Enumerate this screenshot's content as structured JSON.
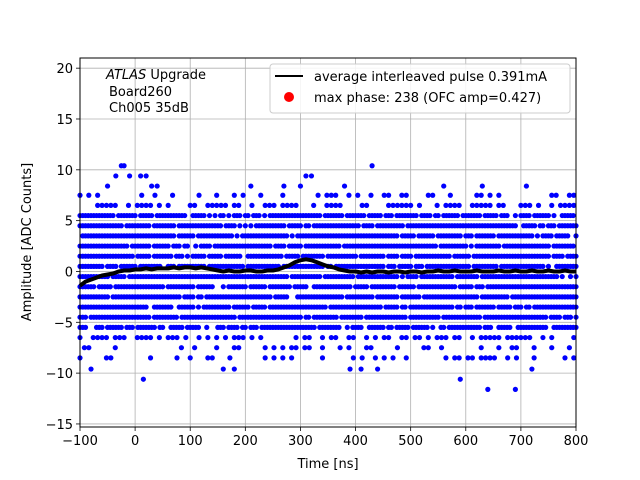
{
  "chart_data": {
    "type": "scatter",
    "title": "",
    "xlabel": "Time [ns]",
    "ylabel": "Amplitude [ADC Counts]",
    "xlim": [
      -100,
      800
    ],
    "ylim": [
      -15.3,
      21
    ],
    "xticks": [
      -100,
      0,
      100,
      200,
      300,
      400,
      500,
      600,
      700,
      800
    ],
    "xtick_labels": [
      "−100",
      "0",
      "100",
      "200",
      "300",
      "400",
      "500",
      "600",
      "700",
      "800"
    ],
    "yticks": [
      -15,
      -10,
      -5,
      0,
      5,
      10,
      15,
      20
    ],
    "ytick_labels": [
      "−15",
      "−10",
      "−5",
      "0",
      "5",
      "10",
      "15",
      "20"
    ],
    "grid": true,
    "legend_position": "top-right",
    "annotation": {
      "line1_italic": "ATLAS",
      "line1_rest": " Upgrade",
      "line2": "Board260",
      "line3": "Ch005 35dB"
    },
    "series": [
      {
        "name": "average interleaved pulse 0.391mA",
        "kind": "line",
        "color": "#000000",
        "x": [
          -100,
          -90,
          -80,
          -70,
          -60,
          -50,
          -40,
          -30,
          -20,
          -10,
          0,
          10,
          20,
          30,
          40,
          50,
          60,
          70,
          80,
          90,
          100,
          110,
          120,
          130,
          140,
          150,
          160,
          170,
          180,
          190,
          200,
          210,
          220,
          230,
          240,
          250,
          260,
          270,
          280,
          290,
          300,
          310,
          320,
          330,
          340,
          350,
          360,
          370,
          380,
          390,
          400,
          410,
          420,
          430,
          440,
          450,
          460,
          470,
          480,
          490,
          500,
          510,
          520,
          530,
          540,
          550,
          560,
          570,
          580,
          590,
          600,
          610,
          620,
          630,
          640,
          650,
          660,
          670,
          680,
          690,
          700,
          710,
          720,
          730,
          740,
          750,
          760,
          770,
          780,
          790,
          800
        ],
        "y": [
          -1.4,
          -1.0,
          -0.8,
          -0.6,
          -0.4,
          -0.3,
          -0.2,
          0.0,
          0.1,
          0.1,
          0.2,
          0.2,
          0.3,
          0.2,
          0.3,
          0.3,
          0.3,
          0.4,
          0.3,
          0.4,
          0.4,
          0.3,
          0.4,
          0.3,
          0.2,
          0.1,
          0.0,
          0.1,
          0.0,
          0.0,
          0.1,
          0.1,
          0.0,
          0.0,
          0.1,
          0.1,
          0.2,
          0.4,
          0.6,
          0.9,
          1.1,
          1.2,
          1.1,
          0.9,
          0.7,
          0.5,
          0.4,
          0.2,
          0.1,
          0.0,
          0.0,
          -0.1,
          0.0,
          -0.1,
          0.0,
          0.0,
          -0.1,
          0.0,
          0.0,
          -0.1,
          0.0,
          0.0,
          -0.1,
          0.0,
          0.0,
          0.1,
          0.0,
          0.0,
          0.1,
          0.0,
          0.0,
          0.0,
          0.1,
          0.0,
          0.0,
          0.0,
          0.1,
          0.0,
          0.0,
          0.1,
          0.0,
          0.0,
          0.1,
          0.0,
          0.0,
          0.1,
          0.0,
          0.0,
          0.1,
          0.0,
          0.0
        ]
      },
      {
        "name": "max phase: 238 (OFC amp=0.427)",
        "kind": "marker",
        "color": "#ff0000",
        "x": [],
        "y": []
      },
      {
        "name": "",
        "kind": "samples",
        "color": "#0000ff",
        "levels": [
          -8.5,
          -7.5,
          -6.5,
          -5.5,
          -4.5,
          -3.5,
          -2.5,
          -1.5,
          -0.5,
          0.5,
          1.5,
          2.5,
          3.5,
          4.5,
          5.5,
          6.5,
          7.5
        ],
        "dense_levels": [
          -4.5,
          -3.5,
          -2.5,
          -1.5,
          -0.5,
          0.5,
          1.5,
          2.5,
          3.5,
          4.5
        ],
        "medium_levels": [
          -5.5,
          5.5
        ],
        "sparse_levels": [
          -8.5,
          -7.5,
          -6.5,
          6.5,
          7.5
        ],
        "outliers_x": [
          -25,
          -20,
          -35,
          -10,
          10,
          20,
          30,
          40,
          160,
          180,
          310,
          320,
          390,
          410,
          430,
          440,
          590,
          640,
          690,
          720,
          -80,
          -50,
          15,
          210,
          270,
          300,
          380,
          560,
          630,
          710
        ],
        "outliers_y": [
          10.4,
          10.4,
          9.4,
          9.4,
          9.4,
          9.4,
          8.4,
          8.4,
          -9.6,
          -9.6,
          9.4,
          9.4,
          -9.6,
          -9.6,
          10.4,
          -9.6,
          -10.6,
          -11.6,
          -11.6,
          -9.6,
          -9.6,
          8.4,
          -10.6,
          8.4,
          8.4,
          8.4,
          8.4,
          8.4,
          8.4,
          8.4
        ]
      }
    ]
  }
}
